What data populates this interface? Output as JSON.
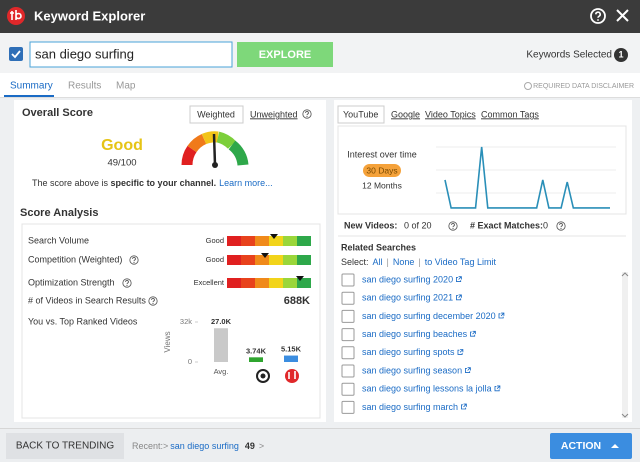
{
  "header": {
    "title": "Keyword Explorer"
  },
  "search": {
    "query": "san diego surfing",
    "button": "EXPLORE",
    "keywords_selected_label": "Keywords Selected",
    "keywords_selected_count": "1"
  },
  "tabs": [
    "Summary",
    "Results",
    "Map"
  ],
  "disclaimer": "REQUIRED DATA DISCLAIMER",
  "overall_score": {
    "title": "Overall Score",
    "tabs": [
      "Weighted",
      "Unweighted"
    ],
    "rating": "Good",
    "score": "49/100",
    "note_prefix": "The score above is ",
    "note_bold": "specific to your channel.",
    "learn_more": "Learn more..."
  },
  "score_analysis": {
    "title": "Score Analysis",
    "rows": [
      {
        "label": "Search Volume",
        "rating": "Good"
      },
      {
        "label": "Competition (Weighted)",
        "rating": "Good"
      },
      {
        "label": "Optimization Strength",
        "rating": "Excellent"
      }
    ],
    "videos_label": "# of Videos in Search Results",
    "videos_value": "688K",
    "compare_label": "You vs. Top Ranked Videos",
    "comparison": {
      "type": "bar",
      "axis_label": "Views",
      "ylim": [
        0,
        32000
      ],
      "yticks": [
        {
          "value": 32000,
          "label": "32k"
        },
        0
      ],
      "categories": [
        "Avg.",
        null,
        null
      ],
      "values": [
        27000,
        3740,
        5150
      ],
      "value_labels": [
        "27.0K",
        "3.74K",
        "5.15K"
      ],
      "colors": [
        "#c9c9c9",
        "#2fa52f",
        "#3b8de0"
      ]
    }
  },
  "source_tabs": [
    "YouTube",
    "Google",
    "Video Topics",
    "Common Tags"
  ],
  "interest": {
    "title": "Interest over time",
    "ranges": [
      "30 Days",
      "12 Months"
    ],
    "type": "line",
    "ylim": [
      0,
      100
    ],
    "values": [
      43,
      3,
      3,
      3,
      3,
      3,
      90,
      3,
      3,
      3,
      3,
      3,
      3,
      3,
      3,
      3,
      43,
      3,
      3,
      3,
      40,
      3,
      3,
      3,
      3,
      3,
      3,
      3
    ],
    "color": "#2a8fb8"
  },
  "stats": {
    "new_videos_label": "New Videos:",
    "new_videos_value": "0 of 20",
    "exact_label": "# Exact Matches:",
    "exact_value": "0"
  },
  "related": {
    "title": "Related Searches",
    "select_label": "Select:",
    "all": "All",
    "none": "None",
    "limit": "to Video Tag Limit",
    "items": [
      "san diego surfing 2020",
      "san diego surfing 2021",
      "san diego surfing december 2020",
      "san diego surfing beaches",
      "san diego surfing spots",
      "san diego surfing season",
      "san diego surfing lessons la jolla",
      "san diego surfing march"
    ]
  },
  "footer": {
    "back": "BACK TO TRENDING",
    "recent_label": "Recent:>",
    "recent_query": "san diego surfing",
    "recent_score": "49",
    "recent_arrow": ">",
    "action": "ACTION"
  }
}
